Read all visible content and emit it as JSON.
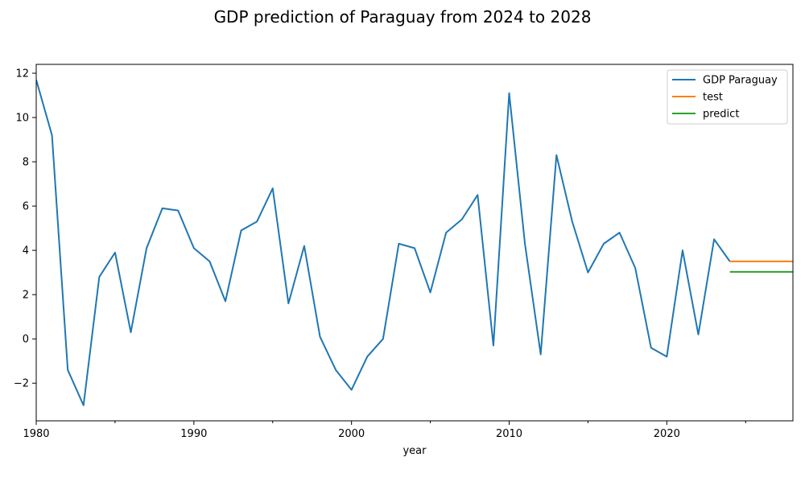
{
  "chart_data": {
    "type": "line",
    "title": "GDP prediction of Paraguay from 2024 to 2028",
    "xlabel": "year",
    "ylabel": "",
    "xlim": [
      1980,
      2028
    ],
    "ylim": [
      -3.7,
      12.4
    ],
    "x_ticks": [
      1980,
      1990,
      2000,
      2010,
      2020
    ],
    "x_tick_labels": [
      "1980",
      "1990",
      "2000",
      "2010",
      "2020"
    ],
    "x_minor_ticks": [
      1985,
      1995,
      2005,
      2015,
      2025
    ],
    "y_ticks": [
      -2,
      0,
      2,
      4,
      6,
      8,
      10,
      12
    ],
    "y_tick_labels": [
      "−2",
      "0",
      "2",
      "4",
      "6",
      "8",
      "10",
      "12"
    ],
    "grid": false,
    "legend_position": "top-right",
    "series": [
      {
        "name": "GDP Paraguay",
        "color": "#1f77b4",
        "x": [
          1980,
          1981,
          1982,
          1983,
          1984,
          1985,
          1986,
          1987,
          1988,
          1989,
          1990,
          1991,
          1992,
          1993,
          1994,
          1995,
          1996,
          1997,
          1998,
          1999,
          2000,
          2001,
          2002,
          2003,
          2004,
          2005,
          2006,
          2007,
          2008,
          2009,
          2010,
          2011,
          2012,
          2013,
          2014,
          2015,
          2016,
          2017,
          2018,
          2019,
          2020,
          2021,
          2022,
          2023,
          2024
        ],
        "values": [
          11.7,
          9.2,
          -1.4,
          -3.0,
          2.8,
          3.9,
          0.3,
          4.1,
          5.9,
          5.8,
          4.1,
          3.5,
          1.7,
          4.9,
          5.3,
          6.8,
          1.6,
          4.2,
          0.1,
          -1.4,
          -2.3,
          -0.8,
          0.0,
          4.3,
          4.1,
          2.1,
          4.8,
          5.4,
          6.5,
          -0.3,
          11.1,
          4.3,
          -0.7,
          8.3,
          5.3,
          3.0,
          4.3,
          4.8,
          3.2,
          -0.4,
          -0.8,
          4.0,
          0.2,
          4.5,
          3.5
        ]
      },
      {
        "name": "test",
        "color": "#ff7f0e",
        "x": [
          2024,
          2025,
          2026,
          2027,
          2028
        ],
        "values": [
          3.5,
          3.5,
          3.5,
          3.5,
          3.5
        ]
      },
      {
        "name": "predict",
        "color": "#2ca02c",
        "x": [
          2024,
          2025,
          2026,
          2027,
          2028
        ],
        "values": [
          3.03,
          3.03,
          3.03,
          3.03,
          3.03
        ]
      }
    ]
  }
}
